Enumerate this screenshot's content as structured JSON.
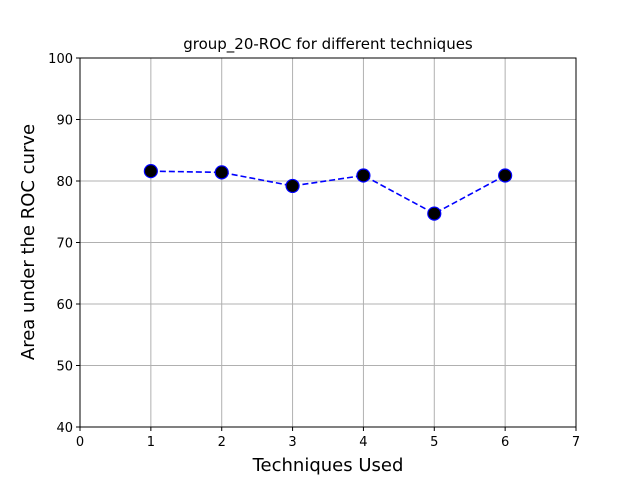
{
  "chart_data": {
    "type": "line",
    "title": "group_20-ROC for different techniques",
    "xlabel": "Techniques Used",
    "ylabel": "Area under the ROC curve",
    "xlim": [
      0,
      7
    ],
    "ylim": [
      40,
      100
    ],
    "xticks": [
      "0",
      "1",
      "2",
      "3",
      "4",
      "5",
      "6",
      "7"
    ],
    "yticks": [
      "40",
      "50",
      "60",
      "70",
      "80",
      "90",
      "100"
    ],
    "grid": true,
    "series": [
      {
        "x": [
          1,
          2,
          3,
          4,
          5,
          6
        ],
        "y": [
          81.6,
          81.4,
          79.2,
          80.9,
          74.7,
          80.9
        ],
        "line_color": "#0000ff",
        "line_style": "dashed",
        "marker_color": "#000000",
        "marker_edge_color": "#0000ff"
      }
    ]
  }
}
